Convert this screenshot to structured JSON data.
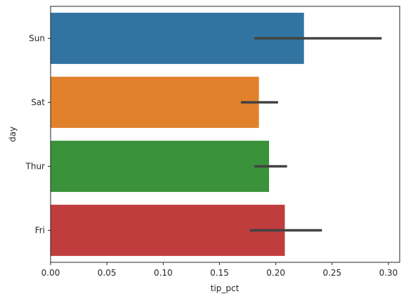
{
  "chart_data": {
    "type": "bar",
    "orientation": "horizontal",
    "categories": [
      "Sun",
      "Sat",
      "Thur",
      "Fri"
    ],
    "values": [
      0.225,
      0.185,
      0.194,
      0.208
    ],
    "error_bars": [
      [
        0.181,
        0.294
      ],
      [
        0.169,
        0.202
      ],
      [
        0.181,
        0.21
      ],
      [
        0.177,
        0.241
      ]
    ],
    "colors": [
      "#3274a1",
      "#e1812c",
      "#3a923a",
      "#c03d3e"
    ],
    "xlabel": "tip_pct",
    "ylabel": "day",
    "xlim": [
      0,
      0.31
    ],
    "xticks": [
      0.0,
      0.05,
      0.1,
      0.15,
      0.2,
      0.25,
      0.3
    ],
    "xtick_labels": [
      "0.00",
      "0.05",
      "0.10",
      "0.15",
      "0.20",
      "0.25",
      "0.30"
    ],
    "grid": false,
    "legend": "none"
  }
}
